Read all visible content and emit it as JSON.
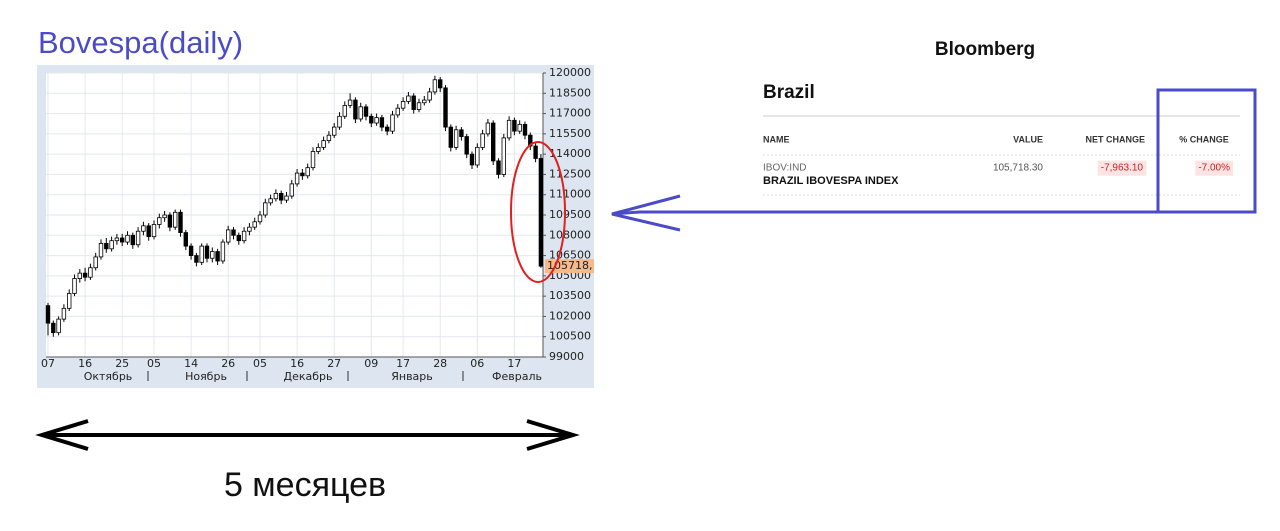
{
  "title": "Bovespa(daily)",
  "chart_data": {
    "type": "candlestick",
    "categories": [
      "07",
      null,
      null,
      null,
      null,
      null,
      null,
      "16",
      null,
      null,
      null,
      null,
      null,
      null,
      "25",
      null,
      null,
      null,
      null,
      null,
      "05",
      null,
      null,
      null,
      null,
      null,
      null,
      "14",
      null,
      null,
      null,
      null,
      null,
      null,
      "26",
      null,
      null,
      null,
      null,
      null,
      "05",
      null,
      null,
      null,
      null,
      null,
      null,
      "16",
      null,
      null,
      null,
      null,
      null,
      null,
      "27",
      null,
      null,
      null,
      null,
      null,
      null,
      "09",
      null,
      null,
      null,
      null,
      null,
      "17",
      null,
      null,
      null,
      null,
      null,
      null,
      "28",
      null,
      null,
      null,
      null,
      null,
      null,
      "06",
      null,
      null,
      null,
      null,
      null,
      null,
      "17",
      null,
      null,
      null,
      null,
      null
    ],
    "months": [
      "Октябрь",
      "Ноябрь",
      "Декабрь",
      "Январь",
      "Февраль"
    ],
    "open": [
      102800,
      101500,
      100800,
      101800,
      102600,
      103700,
      104800,
      105200,
      104900,
      105600,
      106400,
      107400,
      107000,
      107600,
      107800,
      107500,
      108000,
      107300,
      108300,
      108700,
      107900,
      108800,
      109300,
      109500,
      108600,
      109700,
      108200,
      107200,
      106500,
      106000,
      107200,
      106300,
      106800,
      106100,
      107500,
      108400,
      108000,
      107600,
      108300,
      108600,
      109000,
      109500,
      110400,
      110700,
      111100,
      110600,
      110900,
      111800,
      112600,
      112400,
      113000,
      114200,
      114500,
      115000,
      115400,
      116000,
      116800,
      117600,
      118000,
      116600,
      117500,
      116800,
      116300,
      116700,
      116000,
      115700,
      116900,
      117400,
      117900,
      118300,
      117300,
      117800,
      118000,
      118600,
      119500,
      118900,
      116000,
      114500,
      115800,
      115300,
      114000,
      113200,
      114500,
      115500,
      116300,
      113500,
      112500,
      115200,
      116500,
      115700,
      116200,
      115400,
      114600,
      113681.4
    ],
    "high": [
      103000,
      101700,
      102000,
      102900,
      104000,
      105100,
      105500,
      105600,
      105900,
      106700,
      107700,
      107800,
      107900,
      108100,
      108100,
      108300,
      108200,
      108600,
      109000,
      108900,
      109100,
      109600,
      109800,
      109700,
      109900,
      109900,
      108400,
      107400,
      106700,
      107400,
      107400,
      107100,
      107000,
      107700,
      108700,
      108600,
      108200,
      108600,
      108900,
      109300,
      109800,
      110700,
      111000,
      111400,
      111300,
      111200,
      112100,
      112900,
      112900,
      113300,
      114500,
      114800,
      115300,
      115700,
      116300,
      117100,
      117900,
      118500,
      118200,
      117800,
      117700,
      117000,
      117000,
      116900,
      116200,
      117200,
      117700,
      118200,
      118600,
      118500,
      118100,
      118300,
      118900,
      119800,
      119700,
      119100,
      116200,
      116100,
      116000,
      115500,
      114200,
      114800,
      115800,
      116600,
      116500,
      113700,
      115500,
      116800,
      116700,
      116500,
      116400,
      115600,
      114800,
      114000
    ],
    "low": [
      100600,
      100500,
      100600,
      101600,
      102400,
      103500,
      104500,
      104600,
      104700,
      105400,
      106200,
      106700,
      106800,
      107300,
      107200,
      107300,
      107000,
      107100,
      108000,
      107600,
      107700,
      108500,
      109000,
      108300,
      108400,
      107900,
      106900,
      106200,
      105700,
      105800,
      106000,
      106000,
      105800,
      105900,
      107300,
      107700,
      107300,
      107400,
      108000,
      108400,
      108800,
      109300,
      110200,
      110500,
      110300,
      110400,
      110700,
      111600,
      112100,
      112200,
      112800,
      114000,
      114300,
      114800,
      115200,
      115800,
      116600,
      117400,
      116300,
      116400,
      116500,
      116000,
      116100,
      115700,
      115400,
      115500,
      116700,
      117200,
      117700,
      117000,
      117100,
      117600,
      117800,
      118400,
      118600,
      115700,
      114200,
      114300,
      115000,
      113700,
      112900,
      113000,
      114300,
      115300,
      113200,
      112200,
      112300,
      115000,
      115400,
      115500,
      115100,
      114300,
      113400,
      105600
    ],
    "close": [
      101500,
      100800,
      101800,
      102600,
      103700,
      104800,
      105200,
      104900,
      105600,
      106400,
      107400,
      107000,
      107600,
      107800,
      107500,
      108000,
      107300,
      108300,
      108700,
      107900,
      108800,
      109300,
      109500,
      108600,
      109700,
      108200,
      107200,
      106500,
      106000,
      107200,
      106300,
      106800,
      106100,
      107500,
      108400,
      108000,
      107600,
      108300,
      108600,
      109000,
      109500,
      110400,
      110700,
      111100,
      110600,
      110900,
      111800,
      112600,
      112400,
      113000,
      114200,
      114500,
      115000,
      115400,
      116000,
      116800,
      117600,
      118000,
      116600,
      117500,
      116800,
      116300,
      116700,
      116000,
      115700,
      116900,
      117400,
      117900,
      118300,
      117300,
      117800,
      118000,
      118600,
      119500,
      118900,
      116000,
      114500,
      115800,
      115300,
      114000,
      113200,
      114500,
      115500,
      116300,
      113500,
      112500,
      115200,
      116500,
      115700,
      116200,
      115400,
      114600,
      113681.4,
      105718.3
    ],
    "ylim": [
      99000,
      120000
    ],
    "yticks": [
      99000,
      100500,
      102000,
      103500,
      105000,
      106500,
      108000,
      109500,
      111000,
      112500,
      114000,
      115500,
      117000,
      118500,
      120000
    ],
    "grid": true,
    "last_price": {
      "value": 105718.3,
      "label": "105718,"
    },
    "up_color": "#ffffff",
    "down_color": "#000000"
  },
  "bloomberg": {
    "brand": "Bloomberg",
    "heading": "Brazil",
    "table": {
      "headers": [
        "NAME",
        "VALUE",
        "NET CHANGE",
        "% CHANGE"
      ],
      "rows": [
        [
          [
            "IBOV:IND",
            "BRAZIL IBOVESPA INDEX"
          ],
          "105,718.30",
          "-7,963.10",
          "-7.00%"
        ]
      ]
    }
  },
  "caption": "5 месяцев"
}
